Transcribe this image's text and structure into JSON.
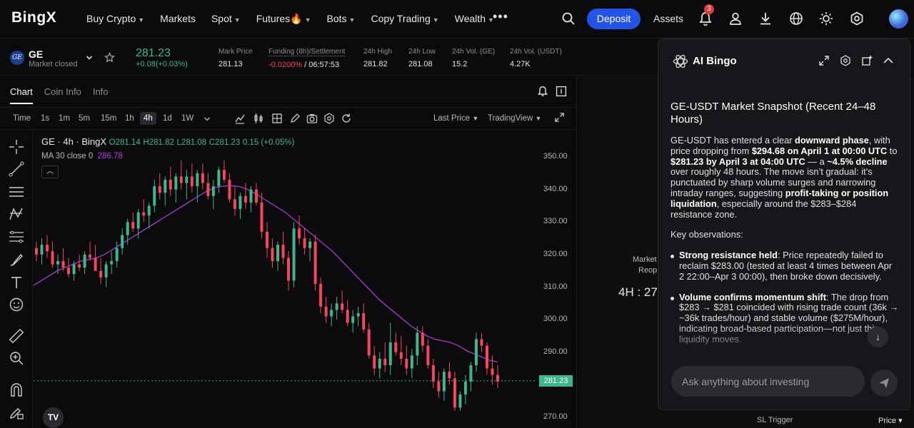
{
  "nav": {
    "logo": "BingX",
    "items": [
      {
        "label": "Buy Crypto",
        "caret": true
      },
      {
        "label": "Markets",
        "caret": false
      },
      {
        "label": "Spot",
        "caret": true
      },
      {
        "label": "Futures🔥",
        "caret": true
      },
      {
        "label": "Bots",
        "caret": true
      },
      {
        "label": "Copy Trading",
        "caret": true
      },
      {
        "label": "Wealth",
        "caret": true
      }
    ],
    "more": "•••",
    "deposit": "Deposit",
    "assets": "Assets",
    "notif_count": "3"
  },
  "ticker": {
    "symbol": "GE",
    "status": "Market closed",
    "price": "281.23",
    "change": "+0.08(+0.03%)",
    "stats": [
      {
        "label": "Mark Price",
        "value": "281.13"
      },
      {
        "label": "Funding (8h)/Settlement",
        "value_neg": "-0.0200%",
        "value": " / 06:57:53"
      },
      {
        "label": "24h High",
        "value": "281.82"
      },
      {
        "label": "24h Low",
        "value": "281.08"
      },
      {
        "label": "24h Vol. (GE)",
        "value": "15.2"
      },
      {
        "label": "24h Vol. (USDT)",
        "value": "4.27K"
      }
    ]
  },
  "chart_panel": {
    "tabs": [
      "Chart",
      "Coin Info",
      "Info"
    ],
    "timeframes": [
      "Time",
      "1s",
      "1m",
      "5m",
      "15m",
      "1h",
      "4h",
      "1d",
      "1W"
    ],
    "active_timeframe": "4h",
    "last_price": "Last Price",
    "view": "TradingView",
    "legend": {
      "name": "GE · 4h · BingX",
      "o": "O281.14",
      "h": "H281.82",
      "l": "L281.08",
      "c": "C281.23",
      "chg": "0.15 (+0.05%)",
      "ma_label": "MA 30 close 0",
      "ma_value": "286.78"
    }
  },
  "chart_data": {
    "type": "candlestick",
    "timeframe": "4h",
    "yticks": [
      "350.00",
      "340.00",
      "330.00",
      "320.00",
      "310.00",
      "300.00",
      "290.00",
      "280.00",
      "270.00"
    ],
    "ylim": [
      267,
      354
    ],
    "last_price_label": "281.23",
    "last_price": 281.23,
    "ohlc": [
      [
        322,
        324,
        318,
        320
      ],
      [
        320,
        325,
        317,
        323
      ],
      [
        323,
        326,
        319,
        321
      ],
      [
        321,
        324,
        316,
        317
      ],
      [
        317,
        320,
        314,
        318
      ],
      [
        318,
        322,
        315,
        316
      ],
      [
        316,
        319,
        313,
        314
      ],
      [
        314,
        318,
        312,
        317
      ],
      [
        317,
        320,
        315,
        316
      ],
      [
        316,
        321,
        314,
        320
      ],
      [
        320,
        324,
        318,
        319
      ],
      [
        319,
        323,
        315,
        315
      ],
      [
        315,
        319,
        311,
        313
      ],
      [
        313,
        318,
        310,
        317
      ],
      [
        317,
        321,
        314,
        318
      ],
      [
        318,
        324,
        316,
        322
      ],
      [
        322,
        328,
        320,
        326
      ],
      [
        326,
        331,
        323,
        330
      ],
      [
        330,
        333,
        327,
        328
      ],
      [
        328,
        334,
        325,
        333
      ],
      [
        333,
        337,
        330,
        332
      ],
      [
        332,
        336,
        328,
        335
      ],
      [
        335,
        343,
        333,
        341
      ],
      [
        341,
        345,
        337,
        339
      ],
      [
        339,
        344,
        335,
        343
      ],
      [
        343,
        347,
        338,
        340
      ],
      [
        340,
        345,
        336,
        344
      ],
      [
        344,
        349,
        340,
        342
      ],
      [
        342,
        346,
        337,
        344
      ],
      [
        344,
        348,
        339,
        341
      ],
      [
        341,
        346,
        336,
        345
      ],
      [
        345,
        348,
        340,
        342
      ],
      [
        342,
        345,
        337,
        338
      ],
      [
        338,
        343,
        334,
        341
      ],
      [
        341,
        347,
        339,
        346
      ],
      [
        346,
        349,
        342,
        343
      ],
      [
        343,
        345,
        336,
        337
      ],
      [
        337,
        341,
        332,
        334
      ],
      [
        334,
        339,
        331,
        338
      ],
      [
        338,
        342,
        334,
        336
      ],
      [
        336,
        341,
        333,
        340
      ],
      [
        340,
        342,
        335,
        336
      ],
      [
        336,
        339,
        325,
        327
      ],
      [
        327,
        330,
        319,
        322
      ],
      [
        322,
        325,
        316,
        318
      ],
      [
        318,
        324,
        315,
        323
      ],
      [
        323,
        327,
        317,
        319
      ],
      [
        319,
        321,
        309,
        312
      ],
      [
        312,
        330,
        310,
        328
      ],
      [
        328,
        332,
        323,
        325
      ],
      [
        325,
        328,
        320,
        322
      ],
      [
        322,
        325,
        318,
        324
      ],
      [
        324,
        326,
        309,
        311
      ],
      [
        311,
        313,
        302,
        304
      ],
      [
        304,
        307,
        299,
        301
      ],
      [
        301,
        305,
        298,
        303
      ],
      [
        303,
        307,
        300,
        305
      ],
      [
        305,
        309,
        302,
        303
      ],
      [
        303,
        306,
        298,
        299
      ],
      [
        299,
        303,
        296,
        301
      ],
      [
        301,
        304,
        298,
        302
      ],
      [
        302,
        305,
        296,
        297
      ],
      [
        297,
        299,
        288,
        289
      ],
      [
        289,
        292,
        283,
        285
      ],
      [
        285,
        290,
        282,
        288
      ],
      [
        288,
        293,
        284,
        286
      ],
      [
        286,
        299,
        283,
        293
      ],
      [
        293,
        296,
        289,
        290
      ],
      [
        290,
        295,
        286,
        288
      ],
      [
        288,
        292,
        283,
        285
      ],
      [
        285,
        291,
        282,
        289
      ],
      [
        289,
        298,
        286,
        296
      ],
      [
        296,
        298,
        290,
        292
      ],
      [
        292,
        294,
        285,
        286
      ],
      [
        286,
        288,
        279,
        281
      ],
      [
        281,
        284,
        276,
        278
      ],
      [
        278,
        285,
        275,
        284
      ],
      [
        284,
        287,
        280,
        282
      ],
      [
        282,
        284,
        272,
        273
      ],
      [
        273,
        278,
        272,
        277
      ],
      [
        277,
        283,
        274,
        281
      ],
      [
        281,
        287,
        278,
        286
      ],
      [
        286,
        296,
        284,
        294
      ],
      [
        294,
        296,
        290,
        292
      ],
      [
        292,
        293,
        283,
        285
      ],
      [
        285,
        289,
        280,
        283
      ],
      [
        283,
        286,
        279,
        281
      ]
    ],
    "ma30": [
      310.5,
      312,
      313.5,
      315,
      316,
      317,
      318,
      318.5,
      319,
      320,
      321.5,
      323,
      324.5,
      326,
      327.5,
      329,
      330.5,
      332,
      333.5,
      335,
      336.5,
      338,
      339.5,
      340.5,
      341,
      341.2,
      341,
      340.2,
      339,
      337.5,
      336,
      334.5,
      333,
      331,
      329,
      327,
      325,
      323,
      321,
      318.5,
      316,
      313.5,
      311,
      308.5,
      306,
      304,
      302,
      300,
      298,
      296.5,
      295,
      294,
      293.5,
      293,
      292,
      290.5,
      289.5,
      288.5,
      287.5,
      287
    ]
  },
  "right_panel": {
    "market_line1": "Market",
    "market_line2": "Reop",
    "countdown": "4H : 27",
    "sl_trigger": "SL Trigger",
    "price_sel": "Price"
  },
  "ai": {
    "title": "AI Bingo",
    "heading": "GE-USDT Market Snapshot (Recent 24–48 Hours)",
    "p1": [
      {
        "t": "GE-USDT has entered a clear "
      },
      {
        "b": "downward phase"
      },
      {
        "t": ", with price dropping from "
      },
      {
        "b": "$294.68 on April 1 at 00:00 UTC"
      },
      {
        "t": " to "
      },
      {
        "b": "$281.23 by April 3 at 04:00 UTC"
      },
      {
        "t": " — a "
      },
      {
        "b": "~4.5% decline"
      },
      {
        "t": " over roughly 48 hours. The move isn’t gradual: it’s punctuated by sharp volume surges and narrowing intraday ranges, suggesting "
      },
      {
        "b": "profit-taking or position liquidation"
      },
      {
        "t": ", especially around the $283–$284 resistance zone."
      }
    ],
    "key_obs": "Key observations:",
    "bullets": [
      [
        {
          "b": "Strong resistance held"
        },
        {
          "t": ": Price repeatedly failed to reclaim $283.00 (tested at least 4 times between Apr 2 22:00–Apr 3 00:00), then broke down decisively."
        }
      ],
      [
        {
          "b": "Volume confirms momentum shift"
        },
        {
          "t": ": The drop from $283 → $281 coincided with rising trade count (36k → ~36k trades/hour) and stable volume ($275M/hour), indicating broad-based participation—not just thin liquidity moves."
        }
      ]
    ],
    "placeholder": "Ask anything about investing"
  },
  "colors": {
    "up": "#3fb68b",
    "down": "#f6465d",
    "ma": "#b73de0",
    "accent": "#2354e6"
  }
}
